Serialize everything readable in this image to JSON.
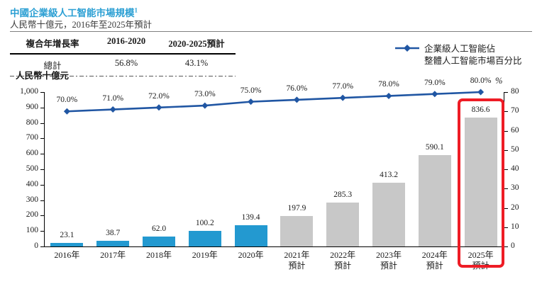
{
  "header": {
    "title": "中國企業級人工智能市場規模",
    "title_sup": "1",
    "subtitle": "人民幣十億元，2016年至2025年預計"
  },
  "cagr_table": {
    "headers": [
      "複合年增長率",
      "2016-2020",
      "2020-2025預計"
    ],
    "row": [
      "總計",
      "56.8%",
      "43.1%"
    ]
  },
  "legend": {
    "line1": "企業級人工智能佔",
    "line2": "整體人工智能市場百分比"
  },
  "chart_data": {
    "type": "bar+line",
    "title": "中國企業級人工智能市場規模",
    "subtitle": "人民幣十億元，2016年至2025年預計",
    "categories": [
      "2016年",
      "2017年",
      "2018年",
      "2019年",
      "2020年",
      "2021年預計",
      "2022年預計",
      "2023年預計",
      "2024年預計",
      "2025年預計"
    ],
    "x_labels": [
      {
        "year": "2016年",
        "note": ""
      },
      {
        "year": "2017年",
        "note": ""
      },
      {
        "year": "2018年",
        "note": ""
      },
      {
        "year": "2019年",
        "note": ""
      },
      {
        "year": "2020年",
        "note": ""
      },
      {
        "year": "2021年",
        "note": "預計"
      },
      {
        "year": "2022年",
        "note": "預計"
      },
      {
        "year": "2023年",
        "note": "預計"
      },
      {
        "year": "2024年",
        "note": "預計"
      },
      {
        "year": "2025年",
        "note": "預計"
      }
    ],
    "bar_series": {
      "values": [
        23.1,
        38.7,
        62.0,
        100.2,
        139.4,
        197.9,
        285.3,
        413.2,
        590.1,
        836.6
      ],
      "labels": [
        "23.1",
        "38.7",
        "62.0",
        "100.2",
        "139.4",
        "197.9",
        "285.3",
        "413.2",
        "590.1",
        "836.6"
      ],
      "actual_count": 5
    },
    "line_series": {
      "name": "企業級人工智能佔整體人工智能市場百分比",
      "values": [
        70.0,
        71.0,
        72.0,
        73.0,
        75.0,
        76.0,
        77.0,
        78.0,
        79.0,
        80.0
      ],
      "labels": [
        "70.0%",
        "71.0%",
        "72.0%",
        "73.0%",
        "75.0%",
        "76.0%",
        "77.0%",
        "78.0%",
        "79.0%",
        "80.0%"
      ]
    },
    "left_axis": {
      "label": "人民幣十億元",
      "min": 0,
      "max": 1000,
      "step": 100,
      "tick_labels": [
        "1,000",
        "900",
        "800",
        "700",
        "600",
        "500",
        "400",
        "300",
        "200",
        "100",
        "0"
      ]
    },
    "right_axis": {
      "label": "%",
      "min": 0,
      "max": 80,
      "step": 10,
      "tick_labels": [
        "80",
        "70",
        "60",
        "50",
        "40",
        "30",
        "20",
        "10",
        "0"
      ]
    },
    "highlight_index": 9,
    "legend_position": "top-right",
    "grid": false
  },
  "colors": {
    "accent_blue": "#2b9fd3",
    "bar_actual": "#2399d0",
    "bar_forecast": "#c8c8c8",
    "line": "#2056a3",
    "highlight_red": "#ee1c25",
    "axis": "#000000"
  }
}
